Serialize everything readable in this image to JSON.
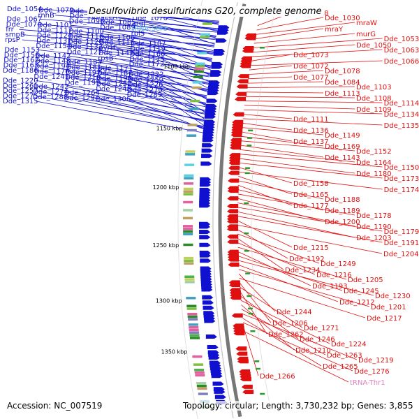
{
  "title": "Desulfovibrio desulfuricans G20, complete genome",
  "footer": {
    "accession": "Accession: NC_007519",
    "topology": "Topology: circular; Length: 3,730,232 bp; Genes: 3,855"
  },
  "colors": {
    "forward_strand": "#1010d0",
    "reverse_strand": "#e01010",
    "trna": "#e080c0",
    "special": "#60c0e0",
    "backbone": "#777777"
  },
  "kbp_ticks": [
    "1100 kbp",
    "1150 kbp",
    "1200 kbp",
    "1250 kbp",
    "1300 kbp",
    "1350 kbp"
  ],
  "left_labels": [
    "Dde_1054",
    "Dde_1079",
    "Dde_1075",
    "Dde_1070",
    "Dde_1060",
    "rnhB",
    "Dde_1086",
    "secA",
    "Dde_1076",
    "Dde_1067",
    "Dde_1096",
    "Dde_1085",
    "argJ",
    "Dde_1074",
    "Dde_1101",
    "Dde_1089",
    "tRNA-Ser1",
    "frr",
    "Dde_1117",
    "Dde_1100",
    "rplS",
    "smpB",
    "Dde_1124",
    "Dde_1116",
    "Dde_1106",
    "rpsP",
    "Dde_1131",
    "Dde_1120",
    "Dde_1115",
    "Dde_1107",
    "Dde_1154",
    "Dde_1132",
    "pyrH",
    "Dde_1119",
    "Dde_1153",
    "Dde_1127",
    "Dde_1147",
    "Dde_1166",
    "Dde_1156",
    "Dde_1142",
    "rpsB",
    "Dde_1175",
    "Dde_1162",
    "Dde_1148",
    "Dde_1183",
    "Dde_1172",
    "Dde_1163",
    "Dde_1194",
    "Dde_1181",
    "Dde_1171",
    "Dde_1186",
    "Dde_1176",
    "Dde_1197",
    "Dde_1187",
    "Dde_1222",
    "Dde_1241",
    "Dde_1218",
    "Dde_1198",
    "Dde_1250",
    "Dde_1220",
    "Dde_1199",
    "Dde_1252",
    "Dde_1226",
    "Dde_1261",
    "Dde_1242",
    "Dde_1248",
    "Dde_1270",
    "Dde_1257",
    "Dde_1274",
    "Dde_1264",
    "Dde_1289",
    "Dde_1275",
    "Dde_1288",
    "Dde_1294",
    "Dde_1306",
    "Dde_1315"
  ],
  "right_labels": [
    "Dde_1018",
    "Dde_1030",
    "mraW",
    "mraY",
    "murG",
    "Dde_1053",
    "Dde_1050",
    "Dde_1063",
    "Dde_1073",
    "Dde_1066",
    "Dde_1072",
    "Dde_1078",
    "Dde_1077",
    "Dde_1084",
    "Dde_1103",
    "Dde_1113",
    "Dde_1108",
    "Dde_1114",
    "Dde_1109",
    "Dde_1134",
    "Dde_1111",
    "Dde_1135",
    "Dde_1136",
    "Dde_1149",
    "Dde_1137",
    "Dde_1169",
    "Dde_1152",
    "Dde_1143",
    "Dde_1164",
    "Dde_1150",
    "Dde_1180",
    "Dde_1173",
    "Dde_1158",
    "Dde_1174",
    "Dde_1165",
    "Dde_1188",
    "Dde_1177",
    "Dde_1189",
    "Dde_1178",
    "Dde_1200",
    "Dde_1190",
    "Dde_1179",
    "Dde_1203",
    "Dde_1191",
    "Dde_1215",
    "Dde_1204",
    "Dde_1192",
    "Dde_1249",
    "Dde_1234",
    "Dde_1216",
    "Dde_1205",
    "Dde_1193",
    "Dde_1245",
    "Dde_1230",
    "Dde_1212",
    "Dde_1201",
    "Dde_1244",
    "Dde_1217",
    "Dde_1206",
    "Dde_1271",
    "Dde_1262",
    "Dde_1246",
    "Dde_1224",
    "Dde_1210",
    "Dde_1263",
    "Dde_1219",
    "Dde_1265",
    "Dde_1276",
    "Dde_1266",
    "tRNA-Thr1"
  ]
}
